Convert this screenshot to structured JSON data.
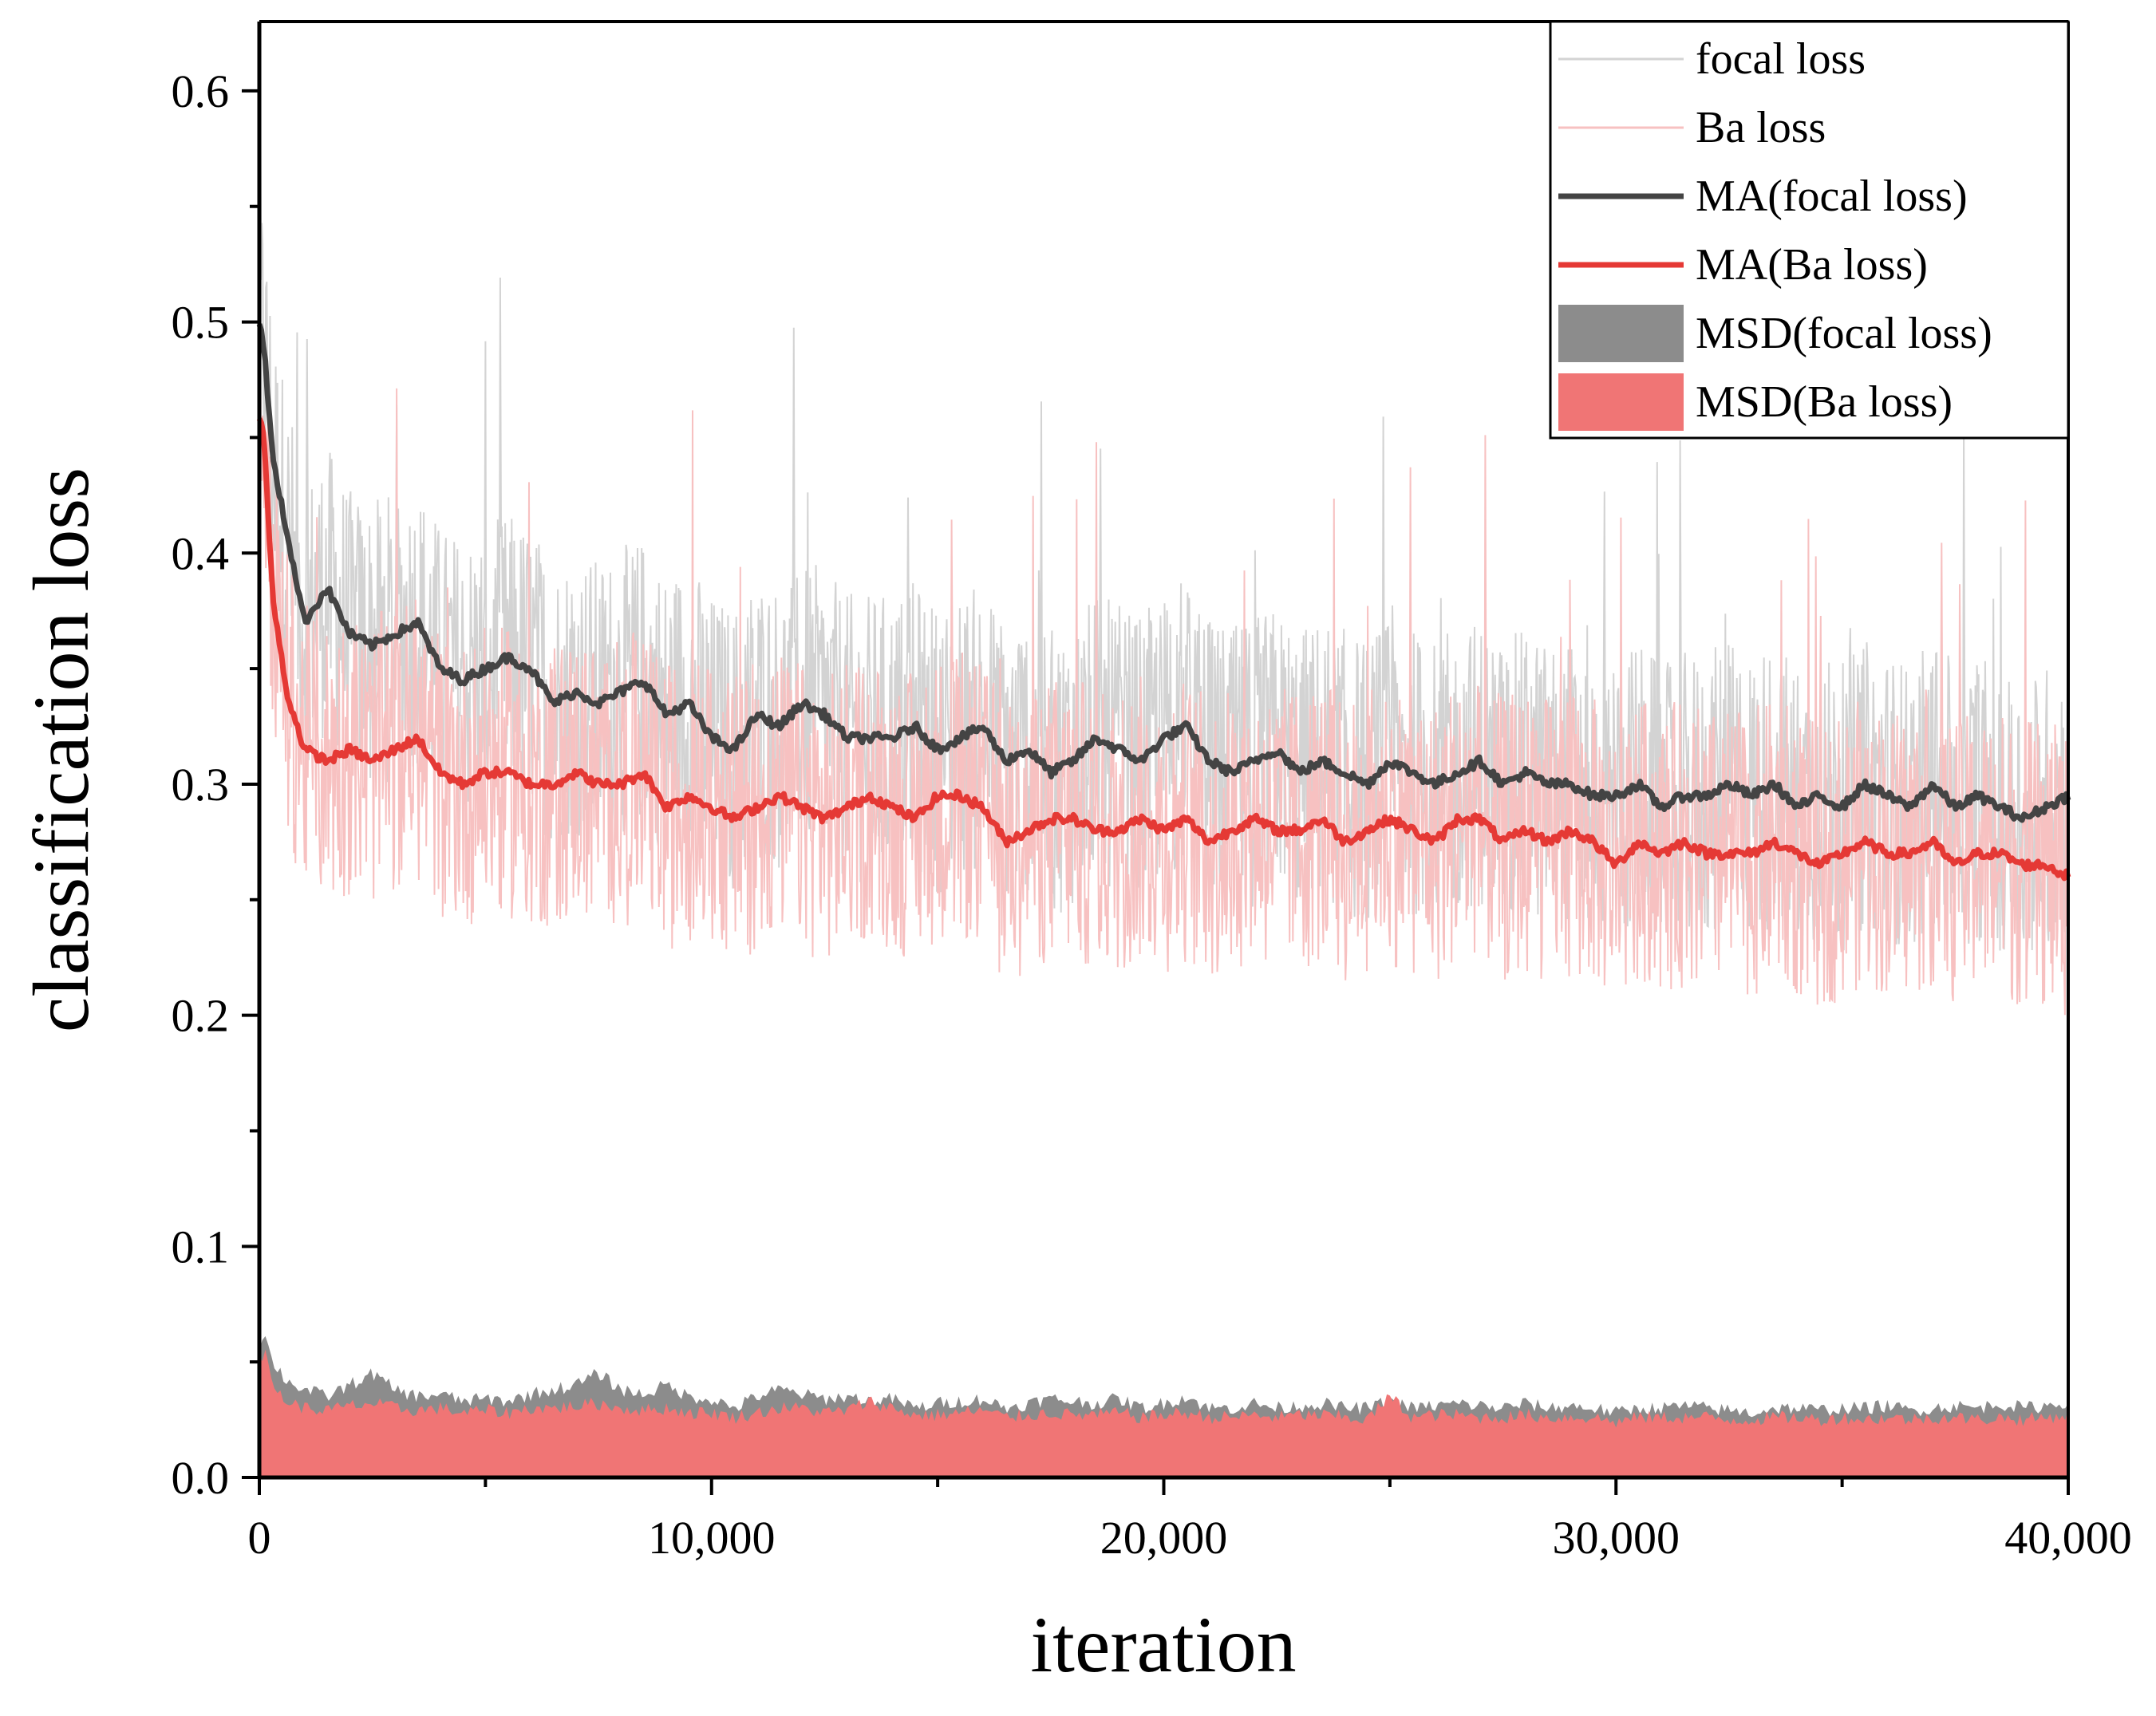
{
  "chart_data": {
    "type": "line",
    "title": "",
    "xlabel": "iteration",
    "ylabel": "classification loss",
    "xlim": [
      0,
      40000
    ],
    "ylim": [
      0,
      0.63
    ],
    "x_ticks": [
      0,
      10000,
      20000,
      30000,
      40000
    ],
    "x_tick_labels": [
      "0",
      "10,000",
      "20,000",
      "30,000",
      "40,000"
    ],
    "y_ticks": [
      0.0,
      0.1,
      0.2,
      0.3,
      0.4,
      0.5,
      0.6
    ],
    "y_tick_labels": [
      "0.0",
      "0.1",
      "0.2",
      "0.3",
      "0.4",
      "0.5",
      "0.6"
    ],
    "grid": false,
    "legend_position": "top-right",
    "x": [
      0,
      100,
      300,
      600,
      1000,
      1500,
      2000,
      2500,
      3000,
      3500,
      4000,
      4500,
      5000,
      5500,
      6000,
      6500,
      7000,
      7500,
      8000,
      8500,
      9000,
      9500,
      10000,
      10500,
      11000,
      11500,
      12000,
      12500,
      13000,
      13500,
      14000,
      14500,
      15000,
      15500,
      16000,
      16500,
      17000,
      17500,
      18000,
      18500,
      19000,
      19500,
      20000,
      20500,
      21000,
      21500,
      22000,
      22500,
      23000,
      23500,
      24000,
      24500,
      25000,
      25500,
      26000,
      26500,
      27000,
      27500,
      28000,
      28500,
      29000,
      29500,
      30000,
      30500,
      31000,
      31500,
      32000,
      32500,
      33000,
      33500,
      34000,
      34500,
      35000,
      35500,
      36000,
      36500,
      37000,
      37500,
      38000,
      38500,
      39000,
      39500,
      40000
    ],
    "series": [
      {
        "name": "focal loss",
        "style": "raw",
        "color": "#d3d3d3",
        "values": [
          0.5,
          0.49,
          0.44,
          0.41,
          0.37,
          0.385,
          0.365,
          0.36,
          0.365,
          0.37,
          0.35,
          0.345,
          0.35,
          0.355,
          0.35,
          0.335,
          0.34,
          0.335,
          0.34,
          0.345,
          0.33,
          0.335,
          0.32,
          0.315,
          0.33,
          0.325,
          0.335,
          0.33,
          0.32,
          0.32,
          0.32,
          0.325,
          0.315,
          0.32,
          0.325,
          0.31,
          0.315,
          0.305,
          0.31,
          0.32,
          0.315,
          0.31,
          0.32,
          0.325,
          0.31,
          0.305,
          0.31,
          0.315,
          0.305,
          0.31,
          0.305,
          0.3,
          0.31,
          0.305,
          0.3,
          0.305,
          0.31,
          0.3,
          0.305,
          0.3,
          0.3,
          0.295,
          0.295,
          0.3,
          0.29,
          0.295,
          0.295,
          0.3,
          0.295,
          0.3,
          0.29,
          0.295,
          0.29,
          0.3,
          0.295,
          0.29,
          0.3,
          0.29,
          0.295,
          0.29,
          0.285,
          0.29,
          0.295
        ]
      },
      {
        "name": "Ba loss",
        "style": "raw",
        "color": "#f7c1c1",
        "values": [
          0.46,
          0.45,
          0.38,
          0.34,
          0.315,
          0.31,
          0.315,
          0.31,
          0.315,
          0.32,
          0.305,
          0.3,
          0.305,
          0.305,
          0.3,
          0.3,
          0.305,
          0.3,
          0.3,
          0.305,
          0.29,
          0.295,
          0.29,
          0.285,
          0.29,
          0.295,
          0.29,
          0.285,
          0.29,
          0.295,
          0.29,
          0.285,
          0.295,
          0.295,
          0.29,
          0.275,
          0.28,
          0.285,
          0.285,
          0.28,
          0.28,
          0.285,
          0.28,
          0.285,
          0.275,
          0.28,
          0.285,
          0.28,
          0.28,
          0.285,
          0.275,
          0.28,
          0.285,
          0.28,
          0.275,
          0.285,
          0.285,
          0.275,
          0.28,
          0.275,
          0.28,
          0.275,
          0.265,
          0.275,
          0.27,
          0.275,
          0.27,
          0.27,
          0.27,
          0.275,
          0.27,
          0.265,
          0.27,
          0.275,
          0.27,
          0.27,
          0.275,
          0.265,
          0.27,
          0.27,
          0.265,
          0.265,
          0.26
        ]
      },
      {
        "name": "MA(focal loss)",
        "style": "moving-average",
        "color": "#444444",
        "values": [
          0.5,
          0.49,
          0.44,
          0.41,
          0.37,
          0.385,
          0.365,
          0.36,
          0.365,
          0.37,
          0.35,
          0.345,
          0.35,
          0.355,
          0.35,
          0.335,
          0.34,
          0.335,
          0.34,
          0.345,
          0.33,
          0.335,
          0.32,
          0.315,
          0.33,
          0.325,
          0.335,
          0.33,
          0.32,
          0.32,
          0.32,
          0.325,
          0.315,
          0.32,
          0.325,
          0.31,
          0.315,
          0.305,
          0.31,
          0.32,
          0.315,
          0.31,
          0.32,
          0.325,
          0.31,
          0.305,
          0.31,
          0.315,
          0.305,
          0.31,
          0.305,
          0.3,
          0.31,
          0.305,
          0.3,
          0.305,
          0.31,
          0.3,
          0.305,
          0.3,
          0.3,
          0.295,
          0.295,
          0.3,
          0.29,
          0.295,
          0.295,
          0.3,
          0.295,
          0.3,
          0.29,
          0.295,
          0.29,
          0.3,
          0.295,
          0.29,
          0.3,
          0.29,
          0.295,
          0.29,
          0.285,
          0.29,
          0.295
        ]
      },
      {
        "name": "MA(Ba loss)",
        "style": "moving-average",
        "color": "#e53935",
        "values": [
          0.46,
          0.45,
          0.38,
          0.34,
          0.315,
          0.31,
          0.315,
          0.31,
          0.315,
          0.32,
          0.305,
          0.3,
          0.305,
          0.305,
          0.3,
          0.3,
          0.305,
          0.3,
          0.3,
          0.305,
          0.29,
          0.295,
          0.29,
          0.285,
          0.29,
          0.295,
          0.29,
          0.285,
          0.29,
          0.295,
          0.29,
          0.285,
          0.295,
          0.295,
          0.29,
          0.275,
          0.28,
          0.285,
          0.285,
          0.28,
          0.28,
          0.285,
          0.28,
          0.285,
          0.275,
          0.28,
          0.285,
          0.28,
          0.28,
          0.285,
          0.275,
          0.28,
          0.285,
          0.28,
          0.275,
          0.285,
          0.285,
          0.275,
          0.28,
          0.275,
          0.28,
          0.275,
          0.265,
          0.275,
          0.27,
          0.275,
          0.27,
          0.27,
          0.27,
          0.275,
          0.27,
          0.265,
          0.27,
          0.275,
          0.27,
          0.27,
          0.275,
          0.265,
          0.27,
          0.27,
          0.265,
          0.265,
          0.26
        ]
      },
      {
        "name": "MSD(focal loss)",
        "style": "area",
        "color": "#8c8c8c",
        "values": [
          0.058,
          0.062,
          0.05,
          0.042,
          0.038,
          0.035,
          0.04,
          0.045,
          0.038,
          0.035,
          0.036,
          0.033,
          0.034,
          0.033,
          0.036,
          0.038,
          0.04,
          0.045,
          0.038,
          0.036,
          0.04,
          0.035,
          0.034,
          0.03,
          0.035,
          0.038,
          0.036,
          0.034,
          0.035,
          0.033,
          0.034,
          0.03,
          0.032,
          0.033,
          0.034,
          0.03,
          0.032,
          0.034,
          0.033,
          0.032,
          0.034,
          0.03,
          0.032,
          0.035,
          0.03,
          0.03,
          0.032,
          0.03,
          0.031,
          0.032,
          0.03,
          0.03,
          0.033,
          0.03,
          0.031,
          0.032,
          0.031,
          0.03,
          0.032,
          0.03,
          0.031,
          0.03,
          0.028,
          0.03,
          0.03,
          0.031,
          0.03,
          0.029,
          0.028,
          0.03,
          0.03,
          0.029,
          0.03,
          0.03,
          0.031,
          0.029,
          0.03,
          0.031,
          0.03,
          0.032,
          0.03,
          0.031,
          0.033
        ]
      },
      {
        "name": "MSD(Ba loss)",
        "style": "area",
        "color": "#f07575",
        "values": [
          0.05,
          0.055,
          0.04,
          0.033,
          0.03,
          0.029,
          0.031,
          0.032,
          0.03,
          0.029,
          0.03,
          0.028,
          0.029,
          0.028,
          0.03,
          0.03,
          0.031,
          0.032,
          0.03,
          0.029,
          0.03,
          0.028,
          0.028,
          0.026,
          0.028,
          0.03,
          0.03,
          0.028,
          0.029,
          0.033,
          0.03,
          0.027,
          0.027,
          0.028,
          0.029,
          0.026,
          0.027,
          0.028,
          0.027,
          0.027,
          0.028,
          0.026,
          0.027,
          0.028,
          0.026,
          0.026,
          0.027,
          0.026,
          0.027,
          0.027,
          0.026,
          0.025,
          0.035,
          0.026,
          0.027,
          0.027,
          0.026,
          0.026,
          0.027,
          0.026,
          0.026,
          0.026,
          0.024,
          0.026,
          0.026,
          0.026,
          0.026,
          0.025,
          0.025,
          0.026,
          0.026,
          0.025,
          0.026,
          0.025,
          0.026,
          0.025,
          0.026,
          0.026,
          0.025,
          0.026,
          0.025,
          0.026,
          0.027
        ]
      }
    ]
  }
}
